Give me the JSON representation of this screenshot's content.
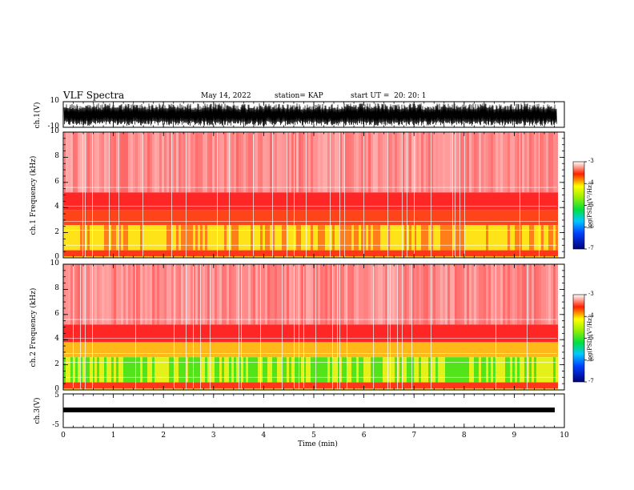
{
  "header": {
    "title": "VLF Spectra",
    "date": "May 14, 2022",
    "station": "station= KAP",
    "start": "start UT =  20: 20: 1"
  },
  "chart_data": [
    {
      "type": "line",
      "name": "ch1-waveform",
      "ylabel": "ch.1(V)",
      "ylim": [
        -10,
        10
      ],
      "yticks": [
        "10",
        "-10"
      ],
      "xlim": [
        0,
        10
      ]
    },
    {
      "type": "heatmap",
      "name": "ch1-spectrogram",
      "ylabel": "ch.1 Frequency (kHz)",
      "ylim": [
        0,
        10
      ],
      "yticks": [
        "0",
        "2",
        "4",
        "6",
        "8",
        "10"
      ],
      "xlim": [
        0,
        9.85
      ],
      "colorbar": {
        "label": "log(PSD)(V²/Hz)",
        "range": [
          -7,
          -3
        ],
        "ticks": [
          "-3",
          "-4",
          "-5",
          "-6",
          "-7"
        ]
      }
    },
    {
      "type": "heatmap",
      "name": "ch2-spectrogram",
      "ylabel": "ch.2 Frequency (kHz)",
      "ylim": [
        0,
        10
      ],
      "yticks": [
        "0",
        "2",
        "4",
        "6",
        "8",
        "10"
      ],
      "xlim": [
        0,
        9.85
      ],
      "colorbar": {
        "label": "log(PSD)(V²/Hz)",
        "range": [
          -7,
          -3
        ],
        "ticks": [
          "-3",
          "-4",
          "-5",
          "-6",
          "-7"
        ]
      }
    },
    {
      "type": "line",
      "name": "ch3-waveform",
      "ylabel": "ch.3(V)",
      "ylim": [
        -5,
        5
      ],
      "yticks": [
        "5",
        "-5"
      ],
      "xlim": [
        0,
        10
      ]
    }
  ],
  "xaxis": {
    "label": "Time (min)",
    "ticks": [
      "0",
      "1",
      "2",
      "3",
      "4",
      "5",
      "6",
      "7",
      "8",
      "9",
      "10"
    ]
  },
  "colors": {
    "low": "#00008b",
    "mid_low": "#00a0ff",
    "mid": "#00e000",
    "mid_high": "#ffff00",
    "high": "#ff0000",
    "max": "#ffffff"
  }
}
